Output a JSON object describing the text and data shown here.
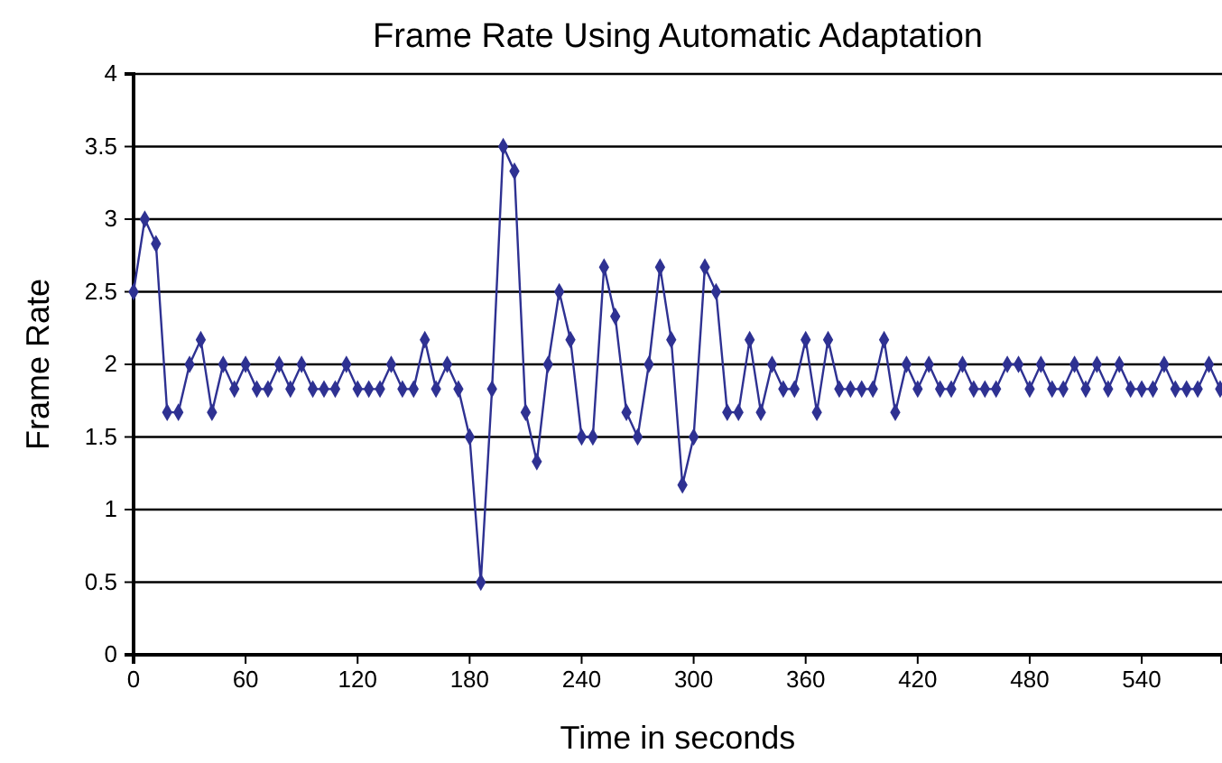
{
  "chart_data": {
    "type": "line",
    "title": "Frame Rate Using Automatic Adaptation",
    "xlabel": "Time in seconds",
    "ylabel": "Frame Rate",
    "x": [
      0,
      6,
      12,
      18,
      24,
      30,
      36,
      42,
      48,
      54,
      60,
      66,
      72,
      78,
      84,
      90,
      96,
      102,
      108,
      114,
      120,
      126,
      132,
      138,
      144,
      150,
      156,
      162,
      168,
      174,
      180,
      186,
      192,
      198,
      204,
      210,
      216,
      222,
      228,
      234,
      240,
      246,
      252,
      258,
      264,
      270,
      276,
      282,
      288,
      294,
      300,
      306,
      312,
      318,
      324,
      330,
      336,
      342,
      348,
      354,
      360,
      366,
      372,
      378,
      384,
      390,
      396,
      402,
      408,
      414,
      420,
      426,
      432,
      438,
      444,
      450,
      456,
      462,
      468,
      474,
      480,
      486,
      492,
      498,
      504,
      510,
      516,
      522,
      528,
      534,
      540,
      546,
      552,
      558,
      564,
      570,
      576,
      582
    ],
    "series": [
      {
        "color": "#2e3192",
        "values": [
          2.5,
          3,
          2.83,
          1.67,
          1.67,
          2,
          2.17,
          1.67,
          2,
          1.83,
          2,
          1.83,
          1.83,
          2,
          1.83,
          2,
          1.83,
          1.83,
          1.83,
          2,
          1.83,
          1.83,
          1.83,
          2,
          1.83,
          1.83,
          2.17,
          1.83,
          2,
          1.83,
          1.5,
          0.5,
          1.83,
          3.5,
          3.33,
          1.67,
          1.33,
          2,
          2.5,
          2.17,
          1.5,
          1.5,
          2.67,
          2.33,
          1.67,
          1.5,
          2,
          2.67,
          2.17,
          1.17,
          1.5,
          2.67,
          2.5,
          1.67,
          1.67,
          2.17,
          1.67,
          2,
          1.83,
          1.83,
          2.17,
          1.67,
          2.17,
          1.83,
          1.83,
          1.83,
          1.83,
          2.17,
          1.67,
          2,
          1.83,
          2,
          1.83,
          1.83,
          2,
          1.83,
          1.83,
          1.83,
          2,
          2,
          1.83,
          2,
          1.83,
          1.83,
          2,
          1.83,
          2,
          1.83,
          2,
          1.83,
          1.83,
          1.83,
          2,
          1.83,
          1.83,
          1.83,
          2,
          1.83
        ]
      }
    ],
    "xlim": [
      0,
      583
    ],
    "xticks": [
      0,
      60,
      120,
      180,
      240,
      300,
      360,
      420,
      480,
      540
    ],
    "ylim": [
      0,
      4
    ],
    "yticks": [
      0,
      0.5,
      1,
      1.5,
      2,
      2.5,
      3,
      3.5,
      4
    ],
    "grid": "y",
    "marker": "diamond",
    "line_style": "solid"
  }
}
